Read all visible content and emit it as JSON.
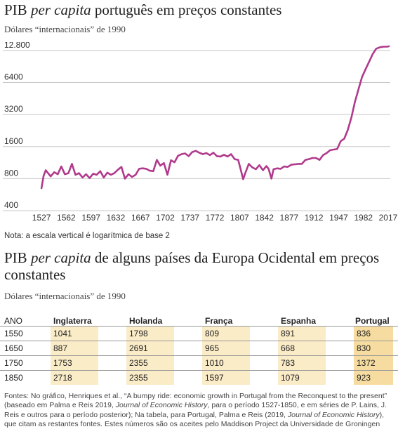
{
  "chart_data": {
    "type": "line",
    "title_plain": "PIB ",
    "title_italic": "per capita",
    "title_rest": " português em preços constantes",
    "subtitle": "Dólares “internacionais” de 1990",
    "yscale": "log2",
    "ylim": [
      400,
      14000
    ],
    "xlim": [
      1512,
      2020
    ],
    "y_ticks": [
      {
        "value": 400,
        "label": "400"
      },
      {
        "value": 800,
        "label": "800"
      },
      {
        "value": 1600,
        "label": "1600"
      },
      {
        "value": 3200,
        "label": "3200"
      },
      {
        "value": 6400,
        "label": "6400"
      },
      {
        "value": 12800,
        "label": "12.800"
      }
    ],
    "x_ticks": [
      "1527",
      "1562",
      "1597",
      "1632",
      "1667",
      "1702",
      "1737",
      "1772",
      "1807",
      "1842",
      "1877",
      "1912",
      "1947",
      "1982",
      "2017"
    ],
    "grid": "horizontal",
    "line_color": "#b03a8c",
    "x": [
      1527,
      1530,
      1533,
      1537,
      1540,
      1545,
      1550,
      1555,
      1560,
      1565,
      1570,
      1575,
      1580,
      1585,
      1590,
      1595,
      1600,
      1605,
      1610,
      1615,
      1620,
      1625,
      1630,
      1635,
      1640,
      1645,
      1650,
      1655,
      1660,
      1665,
      1670,
      1675,
      1680,
      1685,
      1690,
      1695,
      1700,
      1705,
      1710,
      1715,
      1720,
      1725,
      1730,
      1735,
      1740,
      1745,
      1750,
      1755,
      1760,
      1765,
      1770,
      1775,
      1780,
      1785,
      1790,
      1795,
      1800,
      1805,
      1808,
      1812,
      1815,
      1820,
      1825,
      1830,
      1835,
      1840,
      1845,
      1848,
      1852,
      1855,
      1860,
      1865,
      1870,
      1875,
      1880,
      1885,
      1890,
      1895,
      1900,
      1905,
      1910,
      1915,
      1920,
      1925,
      1930,
      1935,
      1940,
      1945,
      1950,
      1955,
      1960,
      1965,
      1970,
      1975,
      1980,
      1985,
      1990,
      1995,
      2000,
      2005,
      2010,
      2015,
      2018
    ],
    "values": [
      650,
      850,
      960,
      890,
      840,
      920,
      880,
      1040,
      880,
      900,
      1100,
      870,
      900,
      820,
      880,
      810,
      890,
      870,
      940,
      820,
      910,
      870,
      900,
      970,
      1030,
      800,
      880,
      830,
      870,
      990,
      1000,
      990,
      950,
      940,
      1200,
      1060,
      1120,
      870,
      1190,
      1140,
      1310,
      1360,
      1380,
      1300,
      1420,
      1460,
      1400,
      1360,
      1390,
      1330,
      1400,
      1300,
      1290,
      1340,
      1290,
      1360,
      1220,
      1200,
      1010,
      790,
      900,
      1100,
      1020,
      980,
      1070,
      960,
      1050,
      990,
      800,
      980,
      1000,
      990,
      1040,
      1030,
      1080,
      1090,
      1100,
      1100,
      1200,
      1220,
      1250,
      1250,
      1200,
      1330,
      1390,
      1480,
      1500,
      1520,
      1800,
      1900,
      2300,
      3000,
      4200,
      5500,
      7200,
      8500,
      10000,
      11800,
      13300,
      13700,
      13900,
      13900,
      14000
    ]
  },
  "note": "Nota: a escala vertical é logarítmica de base 2",
  "table": {
    "title_plain": "PIB ",
    "title_italic": "per capita",
    "title_rest": " de alguns países da Europa Ocidental em preços constantes",
    "subtitle": "Dólares “internacionais” de 1990",
    "ano_label": "ANO",
    "columns": [
      "Inglaterra",
      "Holanda",
      "França",
      "Espanha",
      "Portugal"
    ],
    "rows": [
      {
        "year": "1550",
        "values": [
          "1041",
          "1798",
          "809",
          "891",
          "836"
        ]
      },
      {
        "year": "1650",
        "values": [
          "887",
          "2691",
          "965",
          "668",
          "830"
        ]
      },
      {
        "year": "1750",
        "values": [
          "1753",
          "2355",
          "1010",
          "783",
          "1372"
        ]
      },
      {
        "year": "1850",
        "values": [
          "2718",
          "2355",
          "1597",
          "1079",
          "923"
        ]
      }
    ]
  },
  "sources": {
    "p1": "Fontes: No gráfico, Henriques et al., “A bumpy ride: economic growth in Portugal from the Reconquest to the present” (baseado em Palma e Reis 2019, ",
    "i1": "Journal of Economic History",
    "p2": ", para o período 1527-1850, e em séries de P. Lains, J. Reis e outros para o período posterior); Na tabela, para Portugal, Palma e Reis (2019, ",
    "i2": "Journal of Economic History",
    "p3": "), que citam as restantes fontes. Estes números são os aceites pelo Maddison Project da Universidade de Groningen"
  }
}
